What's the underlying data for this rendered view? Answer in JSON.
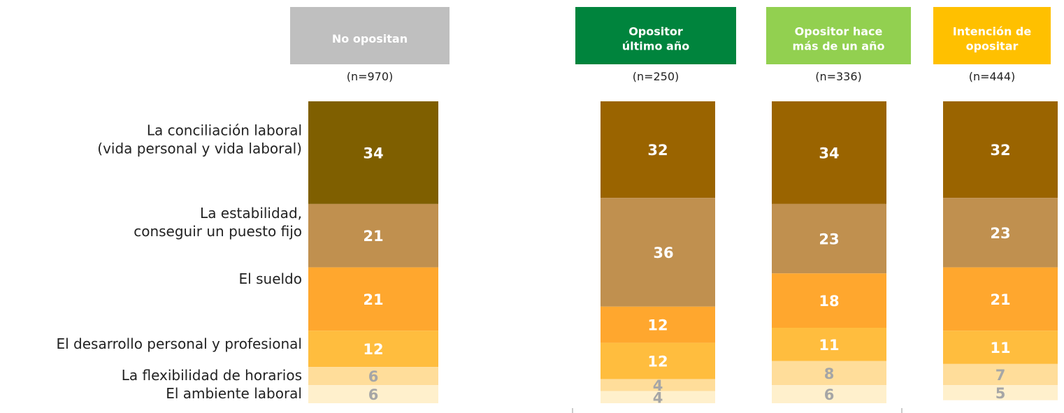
{
  "chart_data": {
    "type": "stacked_bar",
    "categories": [
      "No opositan",
      "Opositor\núltimo año",
      "Opositor  hace\nmás de un año",
      "Intención de\nopositar"
    ],
    "category_colors": [
      "#bfbfbf",
      "#00843d",
      "#92d050",
      "#ffc000"
    ],
    "sample_sizes": [
      "(n=970)",
      "(n=250)",
      "(n=336)",
      "(n=444)"
    ],
    "series": [
      {
        "name": "La conciliación laboral\n(vida personal y vida laboral)",
        "colors": [
          "#7f5f00",
          "#9a6400",
          "#9a6400",
          "#9a6400"
        ],
        "label_color": "#ffffff",
        "values": [
          34,
          32,
          34,
          32
        ]
      },
      {
        "name": "La estabilidad,\nconseguir un puesto fijo",
        "color": "#c0904f",
        "label_color": "#ffffff",
        "values": [
          21,
          36,
          23,
          23
        ]
      },
      {
        "name": "El sueldo",
        "color": "#ffa72e",
        "label_color": "#ffffff",
        "values": [
          21,
          12,
          18,
          21
        ]
      },
      {
        "name": "El desarrollo personal y profesional",
        "color": "#ffbd3e",
        "label_color": "#ffffff",
        "values": [
          12,
          12,
          11,
          11
        ]
      },
      {
        "name": "La flexibilidad de horarios",
        "color": "#ffdd9a",
        "label_color": "#a6a6a6",
        "values": [
          6,
          4,
          8,
          7
        ]
      },
      {
        "name": "El ambiente laboral",
        "color": "#fff0cc",
        "label_color": "#a6a6a6",
        "values": [
          6,
          4,
          6,
          5
        ]
      }
    ]
  }
}
